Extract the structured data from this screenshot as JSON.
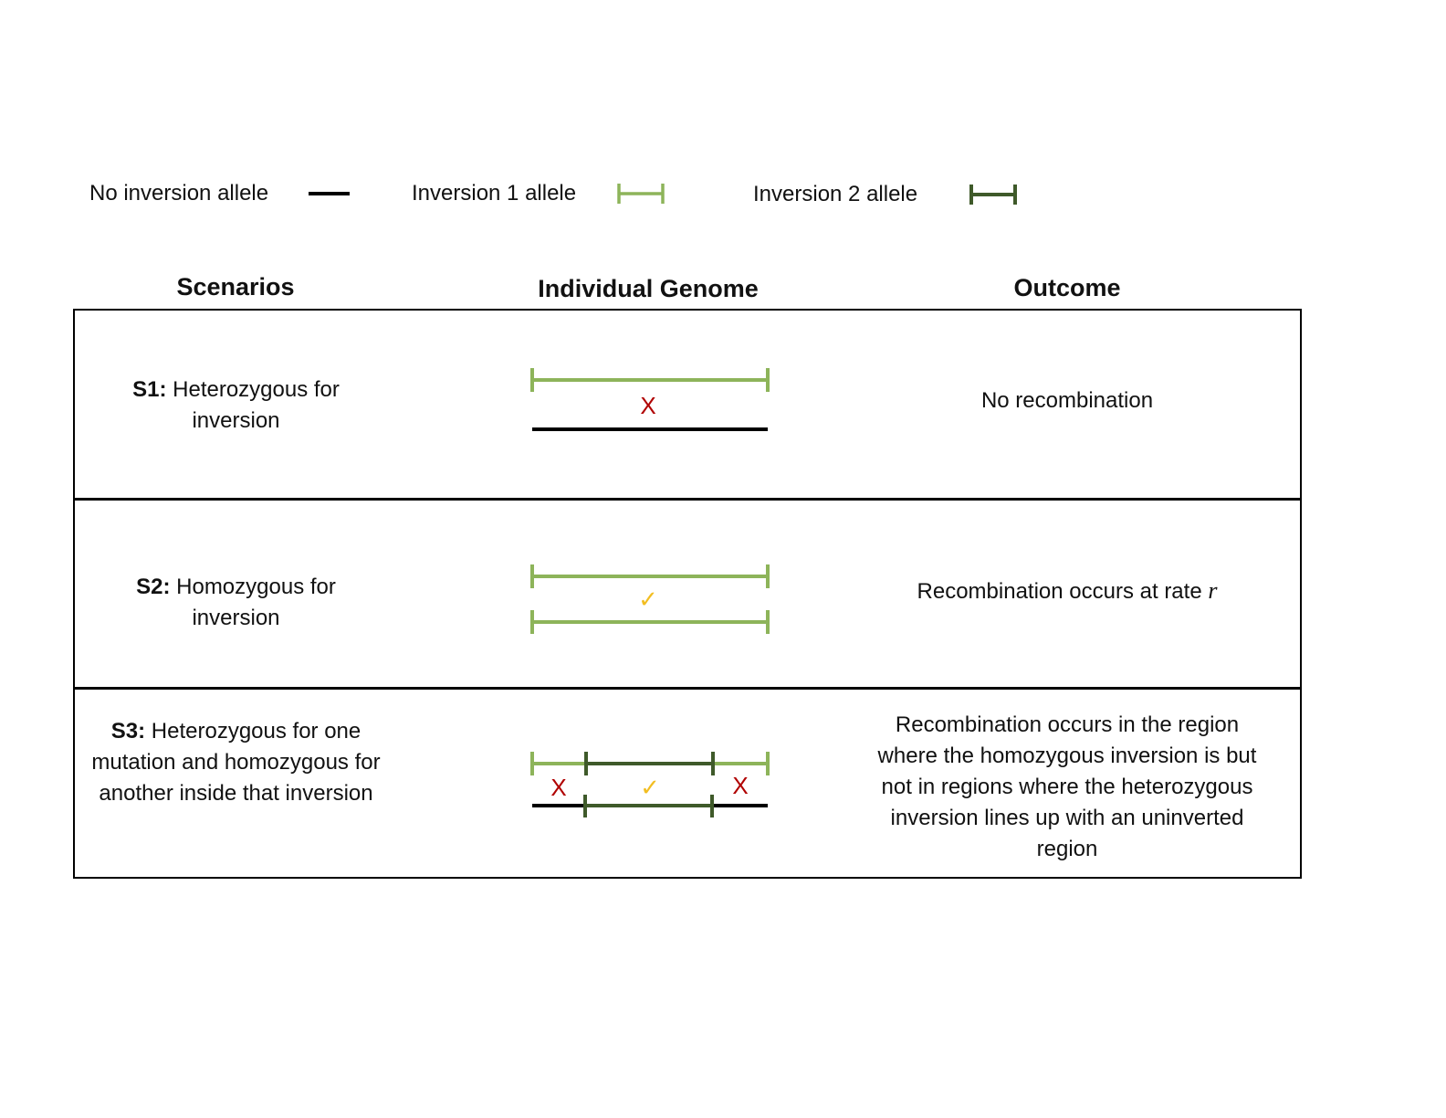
{
  "colors": {
    "no_inversion": "#000000",
    "inversion1": "#8db45a",
    "inversion2": "#3f5a2a",
    "no_recombination_mark": "#b00000",
    "recombination_mark": "#f2be22"
  },
  "legend": {
    "no_inversion_label": "No inversion allele",
    "inversion1_label": "Inversion 1 allele",
    "inversion2_label": "Inversion 2 allele"
  },
  "headers": {
    "scenarios": "Scenarios",
    "individual_genome": "Individual Genome",
    "outcome": "Outcome"
  },
  "rows": [
    {
      "id": "S1:",
      "description": " Heterozygous for inversion",
      "outcome": "No recombination"
    },
    {
      "id": "S2:",
      "description": " Homozygous for inversion",
      "outcome_prefix": "Recombination occurs at rate ",
      "outcome_var": "r"
    },
    {
      "id": "S3:",
      "description": " Heterozygous for one mutation and homozygous for another inside that inversion",
      "outcome": "Recombination occurs in the region where the homozygous inversion is but not in regions where the heterozygous inversion lines up with an uninverted region"
    }
  ],
  "marks": {
    "no_recombination": "X",
    "recombination": "✓"
  }
}
